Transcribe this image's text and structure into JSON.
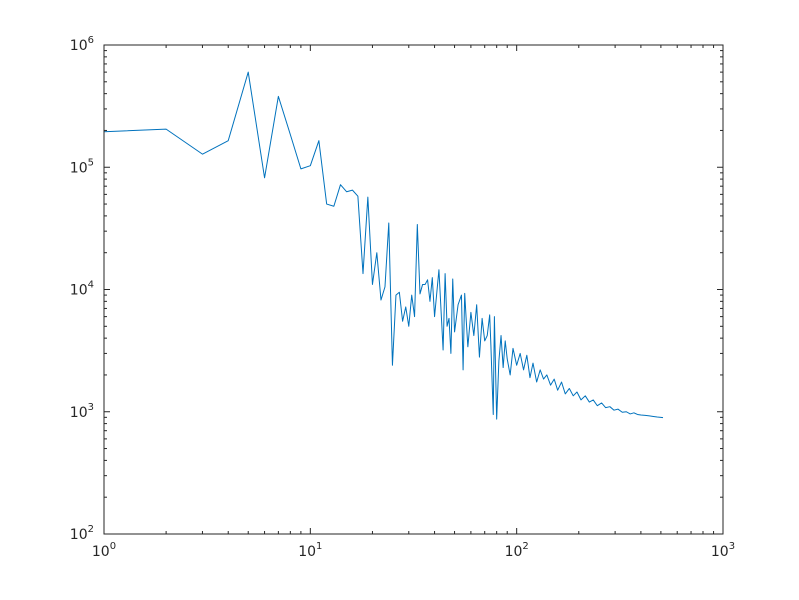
{
  "chart_data": {
    "type": "line",
    "xscale": "log",
    "yscale": "log",
    "xlim": [
      1,
      1000
    ],
    "ylim": [
      100,
      1000000
    ],
    "grid": false,
    "title": "",
    "xlabel": "",
    "ylabel": "",
    "line_color": "#0072bd",
    "x_ticks": [
      {
        "base": "10",
        "exp": "0",
        "value": 1
      },
      {
        "base": "10",
        "exp": "1",
        "value": 10
      },
      {
        "base": "10",
        "exp": "2",
        "value": 100
      },
      {
        "base": "10",
        "exp": "3",
        "value": 1000
      }
    ],
    "y_ticks": [
      {
        "base": "10",
        "exp": "2",
        "value": 100
      },
      {
        "base": "10",
        "exp": "3",
        "value": 1000
      },
      {
        "base": "10",
        "exp": "4",
        "value": 10000
      },
      {
        "base": "10",
        "exp": "5",
        "value": 100000
      },
      {
        "base": "10",
        "exp": "6",
        "value": 1000000
      }
    ],
    "series": [
      {
        "x": [
          1,
          2,
          3,
          4,
          5,
          6,
          7,
          8,
          9,
          10,
          11,
          12,
          13,
          14,
          15,
          16,
          17,
          18,
          19,
          20,
          21,
          22,
          23,
          24,
          25,
          26,
          27,
          28,
          29,
          30,
          31,
          32,
          33,
          34,
          35,
          36,
          37,
          38,
          39,
          40,
          42,
          44,
          45,
          46,
          47,
          48,
          49,
          50,
          52,
          54,
          55,
          56,
          57,
          58,
          60,
          62,
          64,
          66,
          68,
          70,
          72,
          74,
          75,
          76,
          77,
          78,
          80,
          82,
          84,
          86,
          88,
          90,
          93,
          96,
          100,
          104,
          108,
          112,
          116,
          120,
          125,
          130,
          135,
          140,
          146,
          152,
          158,
          165,
          172,
          180,
          188,
          196,
          205,
          215,
          225,
          235,
          246,
          258,
          270,
          283,
          296,
          310,
          325,
          340,
          355,
          370,
          385,
          400,
          420,
          440,
          460,
          480,
          500,
          512
        ],
        "y": [
          195000,
          205000,
          128000,
          165000,
          600000,
          82000,
          380000,
          185000,
          97000,
          103000,
          165000,
          50000,
          48000,
          72000,
          63000,
          65000,
          58000,
          13500,
          57000,
          11000,
          20000,
          8200,
          10500,
          35000,
          2400,
          9000,
          9500,
          5500,
          7200,
          5000,
          9000,
          6000,
          34000,
          9200,
          11000,
          11000,
          12000,
          8000,
          12500,
          6000,
          14500,
          3200,
          13500,
          5000,
          5800,
          3000,
          12200,
          4500,
          7500,
          9000,
          2200,
          9300,
          5500,
          3400,
          6500,
          4200,
          7500,
          2800,
          5800,
          3800,
          4200,
          6200,
          3500,
          1800,
          950,
          6000,
          870,
          2600,
          4200,
          2300,
          3800,
          2700,
          2000,
          3300,
          2400,
          3000,
          2200,
          2900,
          1900,
          2500,
          1750,
          2200,
          1850,
          2000,
          1650,
          1850,
          1500,
          1750,
          1400,
          1550,
          1350,
          1450,
          1250,
          1350,
          1200,
          1250,
          1120,
          1180,
          1080,
          1100,
          1030,
          1050,
          990,
          1000,
          960,
          980,
          950,
          940,
          935,
          925,
          915,
          905,
          900,
          895
        ]
      }
    ]
  }
}
